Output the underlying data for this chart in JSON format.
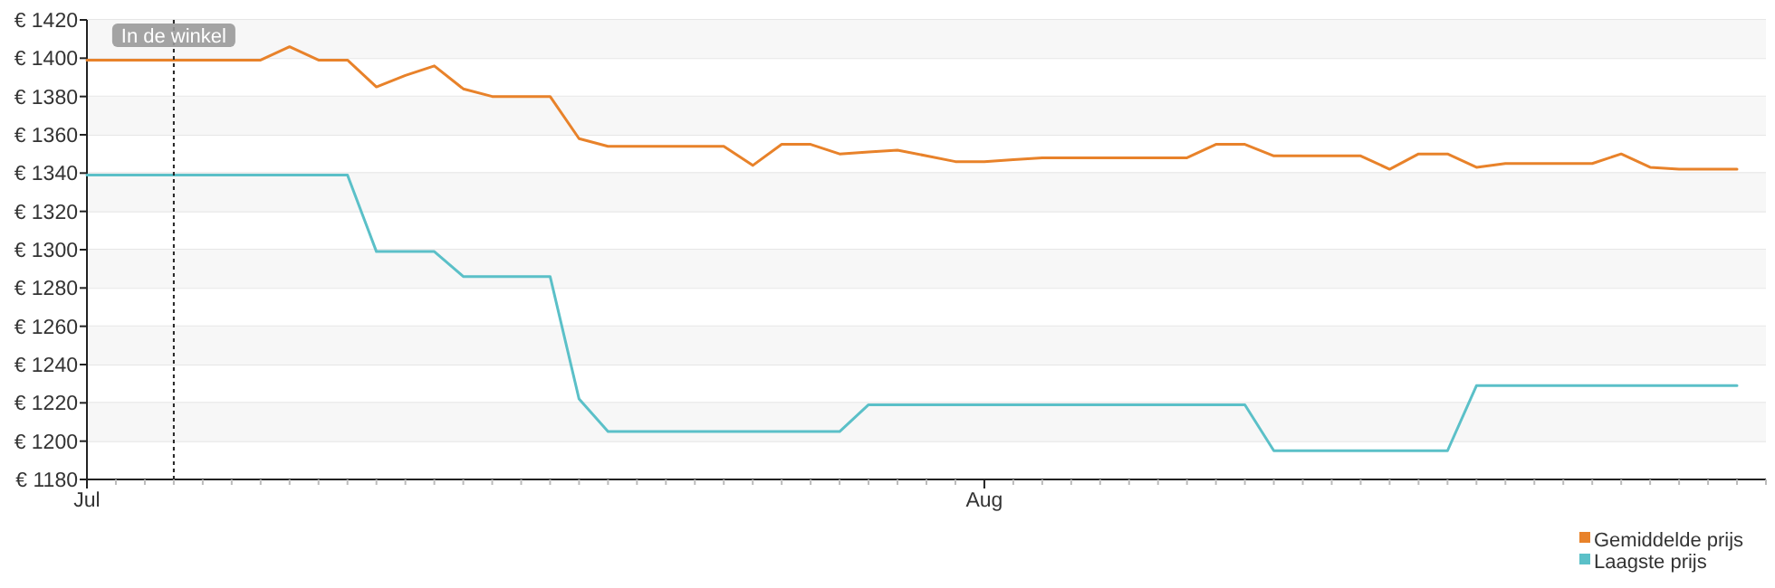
{
  "chart_data": {
    "type": "line",
    "x": [
      "--07-01",
      "--07-02",
      "--07-03",
      "--07-04",
      "--07-05",
      "--07-06",
      "--07-07",
      "--07-08",
      "--07-09",
      "--07-10",
      "--07-11",
      "--07-12",
      "--07-13",
      "--07-14",
      "--07-15",
      "--07-16",
      "--07-17",
      "--07-18",
      "--07-19",
      "--07-20",
      "--07-21",
      "--07-22",
      "--07-23",
      "--07-24",
      "--07-25",
      "--07-26",
      "--07-27",
      "--07-28",
      "--07-29",
      "--07-30",
      "--07-31",
      "--08-01",
      "--08-02",
      "--08-03",
      "--08-04",
      "--08-05",
      "--08-06",
      "--08-07",
      "--08-08",
      "--08-09",
      "--08-10",
      "--08-11",
      "--08-12",
      "--08-13",
      "--08-14",
      "--08-15",
      "--08-16",
      "--08-17",
      "--08-18",
      "--08-19",
      "--08-20",
      "--08-21",
      "--08-22",
      "--08-23",
      "--08-24",
      "--08-25",
      "--08-26",
      "--08-27"
    ],
    "series": [
      {
        "name": "Gemiddelde prijs",
        "color": "#e8822a",
        "values": [
          1399,
          1399,
          1399,
          1399,
          1399,
          1399,
          1399,
          1406,
          1399,
          1399,
          1385,
          1391,
          1396,
          1384,
          1380,
          1380,
          1380,
          1358,
          1354,
          1354,
          1354,
          1354,
          1354,
          1344,
          1355,
          1355,
          1350,
          1351,
          1352,
          1349,
          1346,
          1346,
          1347,
          1348,
          1348,
          1348,
          1348,
          1348,
          1348,
          1355,
          1355,
          1349,
          1349,
          1349,
          1349,
          1342,
          1350,
          1350,
          1343,
          1345,
          1345,
          1345,
          1345,
          1350,
          1343,
          1342,
          1342,
          1342
        ]
      },
      {
        "name": "Laagste prijs",
        "color": "#5bc0c8",
        "values": [
          1339,
          1339,
          1339,
          1339,
          1339,
          1339,
          1339,
          1339,
          1339,
          1339,
          1299,
          1299,
          1299,
          1286,
          1286,
          1286,
          1286,
          1222,
          1205,
          1205,
          1205,
          1205,
          1205,
          1205,
          1205,
          1205,
          1205,
          1219,
          1219,
          1219,
          1219,
          1219,
          1219,
          1219,
          1219,
          1219,
          1219,
          1219,
          1219,
          1219,
          1219,
          1195,
          1195,
          1195,
          1195,
          1195,
          1195,
          1195,
          1229,
          1229,
          1229,
          1229,
          1229,
          1229,
          1229,
          1229,
          1229,
          1229
        ]
      }
    ],
    "xlim": [
      "--07-01",
      "--08-28"
    ],
    "xticks": [
      {
        "value": "--07-01",
        "label": "Jul"
      },
      {
        "value": "--07-02",
        "label": null
      },
      {
        "value": "--07-03",
        "label": null
      },
      {
        "value": "--07-04",
        "label": null
      },
      {
        "value": "--07-05",
        "label": null
      },
      {
        "value": "--07-06",
        "label": null
      },
      {
        "value": "--07-07",
        "label": null
      },
      {
        "value": "--07-08",
        "label": null
      },
      {
        "value": "--07-09",
        "label": null
      },
      {
        "value": "--07-10",
        "label": null
      },
      {
        "value": "--07-11",
        "label": null
      },
      {
        "value": "--07-12",
        "label": null
      },
      {
        "value": "--07-13",
        "label": null
      },
      {
        "value": "--07-14",
        "label": null
      },
      {
        "value": "--07-15",
        "label": null
      },
      {
        "value": "--07-16",
        "label": null
      },
      {
        "value": "--07-17",
        "label": null
      },
      {
        "value": "--07-18",
        "label": null
      },
      {
        "value": "--07-19",
        "label": null
      },
      {
        "value": "--07-20",
        "label": null
      },
      {
        "value": "--07-21",
        "label": null
      },
      {
        "value": "--07-22",
        "label": null
      },
      {
        "value": "--07-23",
        "label": null
      },
      {
        "value": "--07-24",
        "label": null
      },
      {
        "value": "--07-25",
        "label": null
      },
      {
        "value": "--07-26",
        "label": null
      },
      {
        "value": "--07-27",
        "label": null
      },
      {
        "value": "--07-28",
        "label": null
      },
      {
        "value": "--07-29",
        "label": null
      },
      {
        "value": "--07-30",
        "label": null
      },
      {
        "value": "--07-31",
        "label": null
      },
      {
        "value": "--08-01",
        "label": "Aug"
      },
      {
        "value": "--08-02",
        "label": null
      },
      {
        "value": "--08-03",
        "label": null
      },
      {
        "value": "--08-04",
        "label": null
      },
      {
        "value": "--08-05",
        "label": null
      },
      {
        "value": "--08-06",
        "label": null
      },
      {
        "value": "--08-07",
        "label": null
      },
      {
        "value": "--08-08",
        "label": null
      },
      {
        "value": "--08-09",
        "label": null
      },
      {
        "value": "--08-10",
        "label": null
      },
      {
        "value": "--08-11",
        "label": null
      },
      {
        "value": "--08-12",
        "label": null
      },
      {
        "value": "--08-13",
        "label": null
      },
      {
        "value": "--08-14",
        "label": null
      },
      {
        "value": "--08-15",
        "label": null
      },
      {
        "value": "--08-16",
        "label": null
      },
      {
        "value": "--08-17",
        "label": null
      },
      {
        "value": "--08-18",
        "label": null
      },
      {
        "value": "--08-19",
        "label": null
      },
      {
        "value": "--08-20",
        "label": null
      },
      {
        "value": "--08-21",
        "label": null
      },
      {
        "value": "--08-22",
        "label": null
      },
      {
        "value": "--08-23",
        "label": null
      },
      {
        "value": "--08-24",
        "label": null
      },
      {
        "value": "--08-25",
        "label": null
      },
      {
        "value": "--08-26",
        "label": null
      },
      {
        "value": "--08-27",
        "label": null
      },
      {
        "value": "--08-28",
        "label": null
      }
    ],
    "ylim": [
      1180,
      1420
    ],
    "yticks": [
      {
        "value": 1180,
        "label": "€ 1180"
      },
      {
        "value": 1200,
        "label": "€ 1200"
      },
      {
        "value": 1220,
        "label": "€ 1220"
      },
      {
        "value": 1240,
        "label": "€ 1240"
      },
      {
        "value": 1260,
        "label": "€ 1260"
      },
      {
        "value": 1280,
        "label": "€ 1280"
      },
      {
        "value": 1300,
        "label": "€ 1300"
      },
      {
        "value": 1320,
        "label": "€ 1320"
      },
      {
        "value": 1340,
        "label": "€ 1340"
      },
      {
        "value": 1360,
        "label": "€ 1360"
      },
      {
        "value": 1380,
        "label": "€ 1380"
      },
      {
        "value": 1400,
        "label": "€ 1400"
      },
      {
        "value": 1420,
        "label": "€ 1420"
      }
    ],
    "grid": "y",
    "legend": "bottom right",
    "line_style": "solid",
    "marker": "none",
    "ref_lines": [
      {
        "axis": "x",
        "value": "--07-04",
        "label": "In de winkel",
        "line_style": "dotted",
        "color": "#222222"
      }
    ]
  }
}
